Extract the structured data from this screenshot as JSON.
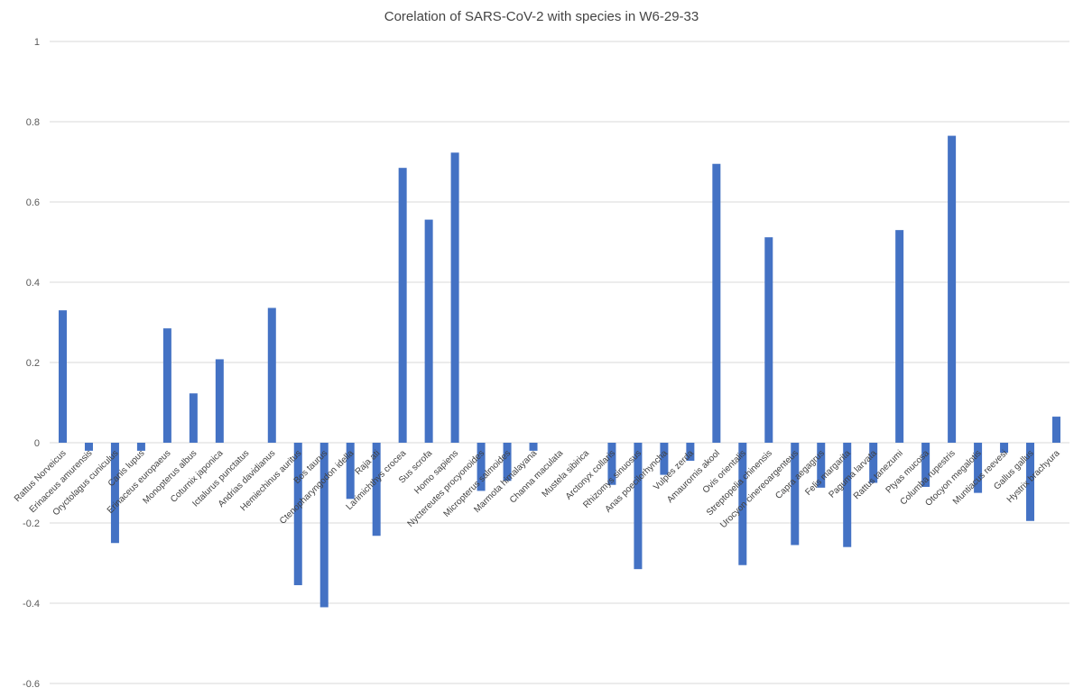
{
  "chart_data": {
    "type": "bar",
    "title": "Corelation of SARS-CoV-2 with species in W6-29-33",
    "xlabel": "",
    "ylabel": "",
    "ylim": [
      -0.6,
      1
    ],
    "yticks": [
      1,
      0.8,
      0.6,
      0.4,
      0.2,
      0,
      -0.2,
      -0.4,
      -0.6
    ],
    "grid": true,
    "legend": "none",
    "bar_color": "#4472C4",
    "categories": [
      "Rattus Norveicus",
      "Erinaceus amurensis",
      "Oryctolagus cuniculus",
      "Canis lupus",
      "Erinaceus europaeus",
      "Monopterus albus",
      "Coturnix japonica",
      "Ictalurus punctatus",
      "Andrias davidianus",
      "Hemiechinus auritus",
      "Bos taurus",
      "Ctenopharyngodon idella",
      "Raja ati",
      "Larimichthys crocea",
      "Sus scrofa",
      "Homo sapiens",
      "Nyctereutes procyonoides",
      "Micropterus salmoides",
      "Marmota himalayana",
      "Channa maculata",
      "Mustela sibirica",
      "Arctonyx collaris",
      "Rhizomys sinuosus",
      "Anas poecilorhyncha",
      "Vulpes zerda",
      "Amaurornis akool",
      "Ovis orientalis",
      "Streptopelia chinensis",
      "Urocyon cinereoargenteus",
      "Capra aegagrus",
      "Felis margarita",
      "Paguma larvata",
      "Rattus tanezumi",
      "Ptyas mucosa",
      "Columba rupestris",
      "Otocyon megalotis",
      "Muntiacus reevesi",
      "Gallus gallus",
      "Hystrix brachyura"
    ],
    "values": [
      0.33,
      -0.02,
      -0.25,
      -0.02,
      0.285,
      0.123,
      0.208,
      0,
      0.336,
      -0.355,
      -0.41,
      -0.14,
      -0.232,
      0.685,
      0.556,
      0.723,
      -0.12,
      -0.095,
      -0.02,
      0,
      0,
      -0.105,
      -0.315,
      -0.08,
      -0.045,
      0.695,
      -0.305,
      0.512,
      -0.255,
      -0.112,
      -0.26,
      -0.1,
      0.53,
      -0.11,
      0.765,
      -0.125,
      -0.025,
      -0.195,
      0.065
    ]
  }
}
